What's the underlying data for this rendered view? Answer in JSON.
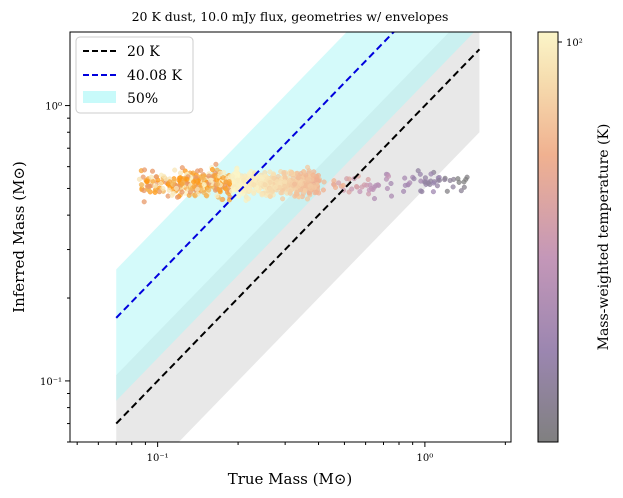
{
  "chart_data": {
    "type": "scatter",
    "title": "20 K dust, 10.0 mJy flux, geometries w/ envelopes",
    "xlabel": "True Mass (M⊙)",
    "ylabel": "Inferred Mass (M⊙)",
    "xscale": "log",
    "yscale": "log",
    "xlim": [
      0.047,
      2.1
    ],
    "ylim": [
      0.06,
      1.85
    ],
    "xticks": [
      {
        "value": 0.1,
        "label": "10⁻¹"
      },
      {
        "value": 1.0,
        "label": "10⁰"
      }
    ],
    "yticks": [
      {
        "value": 0.1,
        "label": "10⁻¹"
      },
      {
        "value": 1.0,
        "label": "10⁰"
      }
    ],
    "legend": {
      "placement": "upper-left",
      "entries": [
        {
          "label": "20 K",
          "style": "dashed",
          "color": "#000000"
        },
        {
          "label": "40.08 K",
          "style": "dashed",
          "color": "#0000dd"
        },
        {
          "label": "50%",
          "style": "patch",
          "color": "#c8fafa"
        }
      ]
    },
    "lines": [
      {
        "name": "20 K",
        "slope": 1.0,
        "factor": 1.0,
        "x_range": [
          0.07,
          1.6
        ],
        "color": "#000000"
      },
      {
        "name": "40.08 K",
        "slope": 1.0,
        "factor": 2.42,
        "x_range": [
          0.07,
          1.6
        ],
        "color": "#0000dd"
      }
    ],
    "bands": [
      {
        "name": "20 K 50%",
        "factor_low": 0.5,
        "factor_high": 1.5,
        "color": "#d8d8d8",
        "opacity": 0.6
      },
      {
        "name": "50%",
        "factor_low": 1.21,
        "factor_high": 3.63,
        "color": "#b0f5f5",
        "opacity": 0.55
      }
    ],
    "scatter": {
      "n_points": 900,
      "x_range": [
        0.085,
        1.45
      ],
      "y_center": 0.52,
      "y_spread": 0.04,
      "temperature_range": [
        2,
        150
      ]
    },
    "colorbar": {
      "label": "Mass-weighted temperature (K)",
      "tick_label": "10²",
      "tick_value": 100,
      "range": [
        2,
        150
      ],
      "colors": [
        "#808080",
        "#9b86b0",
        "#c497b8",
        "#f0b190",
        "#f6dcae",
        "#fbf5c8"
      ]
    }
  }
}
